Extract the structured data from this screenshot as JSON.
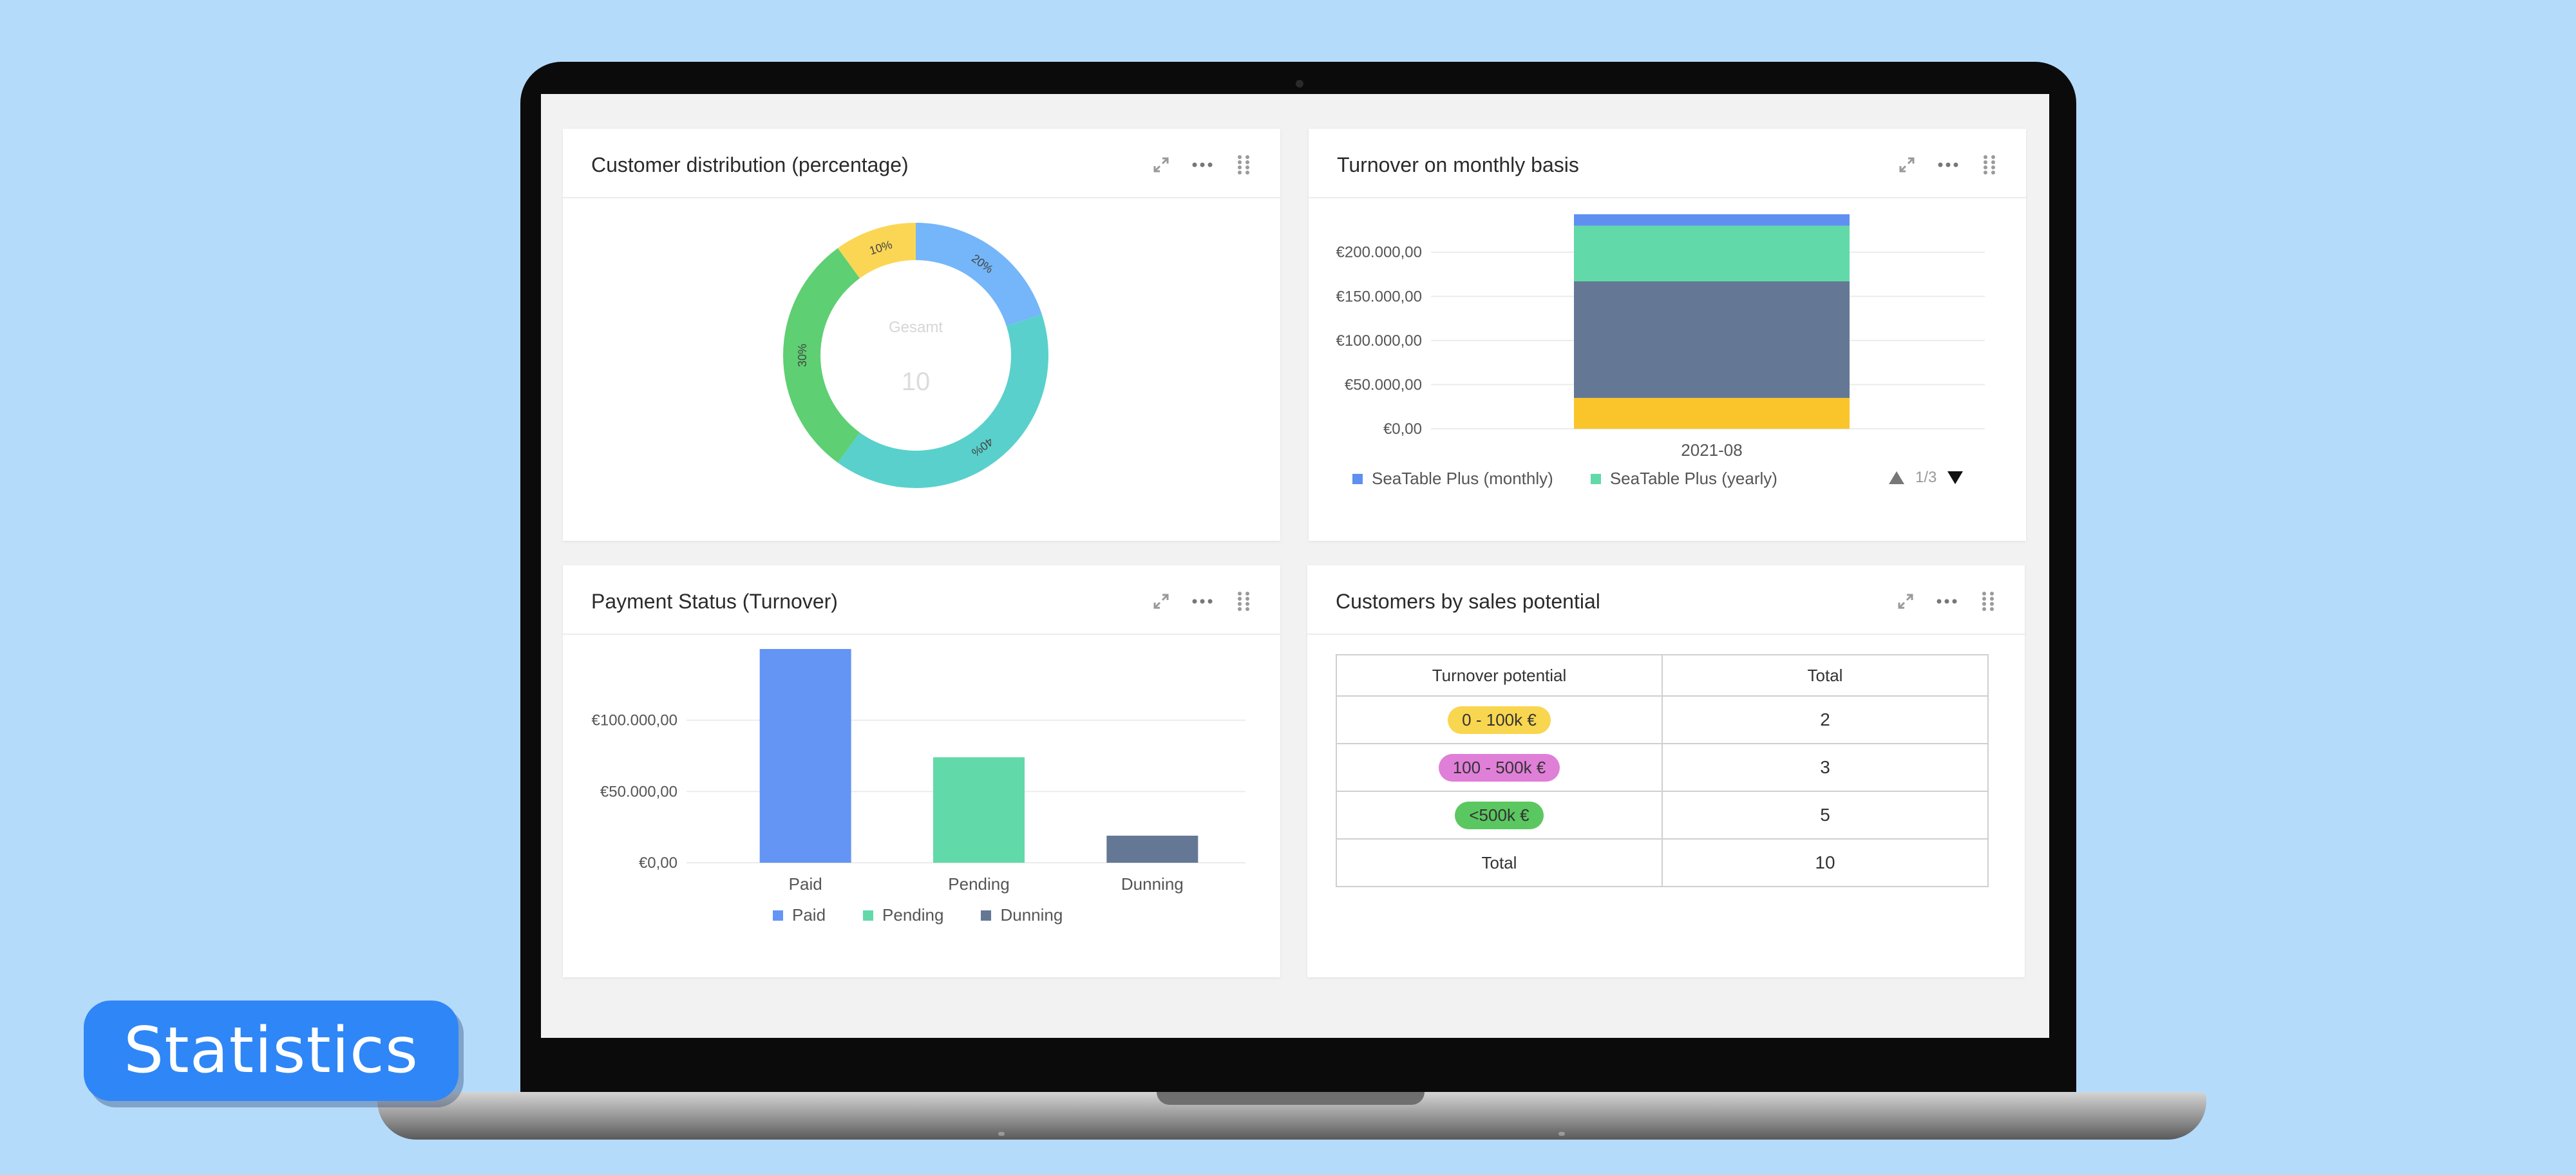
{
  "badge_label": "Statistics",
  "panels": {
    "customer_distribution": {
      "title": "Customer distribution (percentage)",
      "center_label": "Gesamt",
      "center_value": "10"
    },
    "turnover_monthly": {
      "title": "Turnover on monthly basis",
      "legend": [
        "SeaTable Plus (monthly)",
        "SeaTable Plus (yearly)"
      ],
      "pager": "1/3"
    },
    "payment_status": {
      "title": "Payment Status (Turnover)",
      "legend": [
        "Paid",
        "Pending",
        "Dunning"
      ]
    },
    "sales_potential": {
      "title": "Customers by sales potential",
      "columns": [
        "Turnover potential",
        "Total"
      ],
      "rows": [
        {
          "label": "0 - 100k €",
          "value": "2",
          "color": "#f9d64f"
        },
        {
          "label": "100 - 500k €",
          "value": "3",
          "color": "#e07fd7"
        },
        {
          "label": "<500k €",
          "value": "5",
          "color": "#5bc760"
        }
      ],
      "total_label": "Total",
      "total_value": "10"
    }
  },
  "colors": {
    "blue": "#6495f5",
    "light_blue": "#74b6f9",
    "teal": "#59d0cc",
    "green": "#5ecf72",
    "yellow": "#fbd655",
    "mint": "#62d9a9",
    "slate": "#647896",
    "gold": "#f9c52b"
  },
  "chart_data": [
    {
      "type": "pie",
      "variant": "donut",
      "title": "Customer distribution (percentage)",
      "center": {
        "label": "Gesamt",
        "value": "10"
      },
      "slices": [
        {
          "label": "20%",
          "value": 20,
          "color": "#74b6f9"
        },
        {
          "label": "40%",
          "value": 40,
          "color": "#59d0cc"
        },
        {
          "label": "30%",
          "value": 30,
          "color": "#5ecf72"
        },
        {
          "label": "10%",
          "value": 10,
          "color": "#fbd655"
        }
      ]
    },
    {
      "type": "bar",
      "stacked": true,
      "title": "Turnover on monthly basis",
      "categories": [
        "2021-08"
      ],
      "yticks": [
        "€0,00",
        "€50.000,00",
        "€100.000,00",
        "€150.000,00",
        "€200.000,00"
      ],
      "ylim": [
        0,
        245000
      ],
      "series": [
        {
          "values": [
            35000
          ],
          "color": "#f9c52b"
        },
        {
          "values": [
            132000
          ],
          "color": "#647896"
        },
        {
          "name": "SeaTable Plus (yearly)",
          "values": [
            63000
          ],
          "color": "#62d9a9"
        },
        {
          "name": "SeaTable Plus (monthly)",
          "values": [
            13000
          ],
          "color": "#5f8ff0"
        }
      ],
      "legend": "bottom-left"
    },
    {
      "type": "bar",
      "title": "Payment Status (Turnover)",
      "categories": [
        "Paid",
        "Pending",
        "Dunning"
      ],
      "values": [
        150000,
        74000,
        19000
      ],
      "colors": [
        "#6495f5",
        "#62d9a9",
        "#647896"
      ],
      "yticks": [
        "€0,00",
        "€50.000,00",
        "€100.000,00"
      ],
      "ylim": [
        0,
        150000
      ],
      "legend": "bottom-center"
    },
    {
      "type": "table",
      "title": "Customers by sales potential",
      "columns": [
        "Turnover potential",
        "Total"
      ],
      "rows": [
        [
          "0 - 100k €",
          2
        ],
        [
          "100 - 500k €",
          3
        ],
        [
          "<500k €",
          5
        ],
        [
          "Total",
          10
        ]
      ]
    }
  ]
}
